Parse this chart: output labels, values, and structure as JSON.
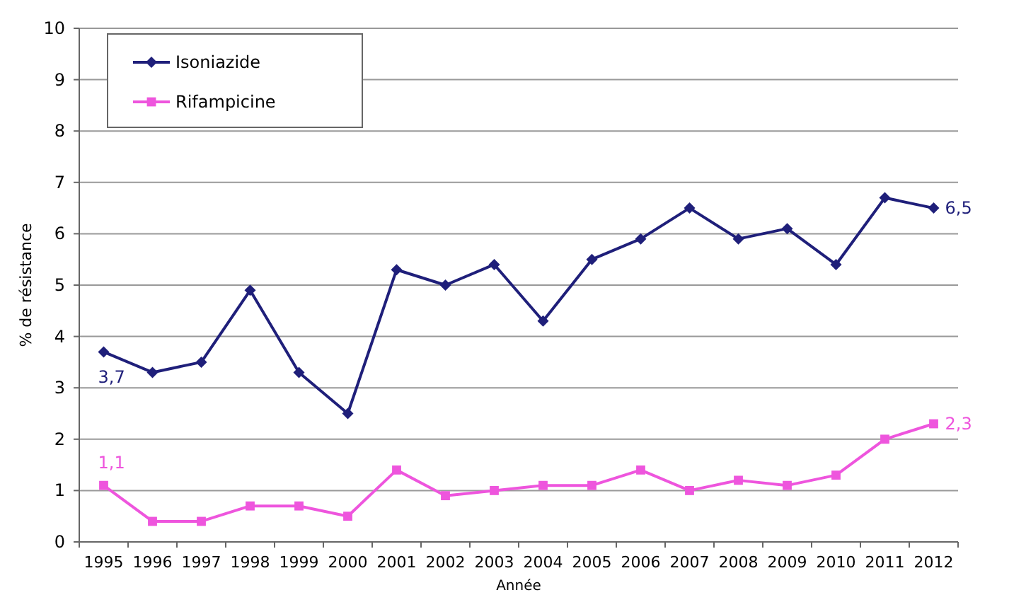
{
  "chart_data": {
    "type": "line",
    "xlabel": "Année",
    "ylabel": "% de résistance",
    "categories": [
      "1995",
      "1996",
      "1997",
      "1998",
      "1999",
      "2000",
      "2001",
      "2002",
      "2003",
      "2004",
      "2005",
      "2006",
      "2007",
      "2008",
      "2009",
      "2010",
      "2011",
      "2012"
    ],
    "series": [
      {
        "name": "Isoniazide",
        "color": "#1f1f7a",
        "marker": "diamond",
        "values": [
          3.7,
          3.3,
          3.5,
          4.9,
          3.3,
          2.5,
          5.3,
          5.0,
          5.4,
          4.3,
          5.5,
          5.9,
          6.5,
          5.9,
          6.1,
          5.4,
          6.7,
          6.5
        ],
        "value_labels": [
          "3,7",
          null,
          null,
          null,
          null,
          null,
          null,
          null,
          null,
          null,
          null,
          null,
          null,
          null,
          null,
          null,
          null,
          "6,5"
        ]
      },
      {
        "name": "Rifampicine",
        "color": "#ee55dd",
        "marker": "square",
        "values": [
          1.1,
          0.4,
          0.4,
          0.7,
          0.7,
          0.5,
          1.4,
          0.9,
          1.0,
          1.1,
          1.1,
          1.4,
          1.0,
          1.2,
          1.1,
          1.3,
          2.0,
          2.3
        ],
        "value_labels": [
          "1,1",
          null,
          null,
          null,
          null,
          null,
          null,
          null,
          null,
          null,
          null,
          null,
          null,
          null,
          null,
          null,
          null,
          "2,3"
        ]
      }
    ],
    "ylim": [
      0,
      10
    ],
    "yticks": [
      0,
      1,
      2,
      3,
      4,
      5,
      6,
      7,
      8,
      9,
      10
    ],
    "grid": "y",
    "legend": "top left",
    "line_style": "solid"
  }
}
